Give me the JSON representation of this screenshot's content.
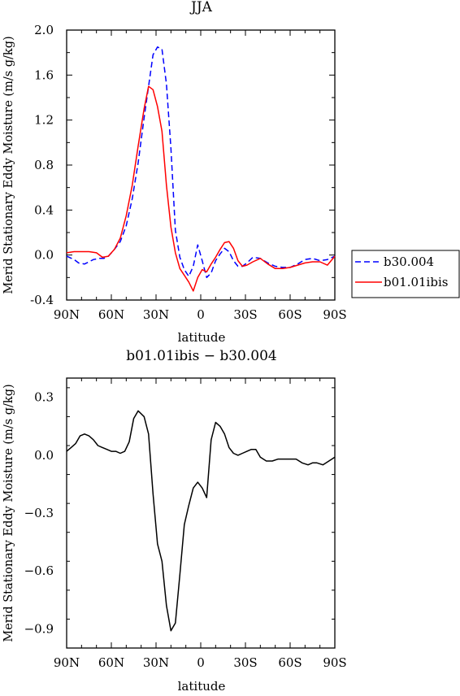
{
  "chart_data": [
    {
      "type": "line",
      "title": "JJA",
      "xlabel": "latitude",
      "ylabel": "Merid Stationary Eddy Moisture (m/s g/kg)",
      "xlim": [
        -90,
        90
      ],
      "ylim": [
        -0.4,
        2.0
      ],
      "x_tick_values": [
        -90,
        -60,
        -30,
        0,
        30,
        60,
        90
      ],
      "x_tick_labels": [
        "90N",
        "60N",
        "30N",
        "0",
        "30S",
        "60S",
        "90S"
      ],
      "y_tick_values": [
        -0.4,
        0.0,
        0.4,
        0.8,
        1.2,
        1.6,
        2.0
      ],
      "y_tick_labels": [
        "-0.4",
        "0.0",
        "0.4",
        "0.8",
        "1.2",
        "1.6",
        "2.0"
      ],
      "legend_position": "right",
      "series": [
        {
          "name": "b30.004",
          "color": "#0000ff",
          "dash": "dashed",
          "x": [
            -90,
            -85,
            -82,
            -78,
            -75,
            -72,
            -68,
            -65,
            -62,
            -58,
            -54,
            -50,
            -46,
            -42,
            -38,
            -35,
            -32,
            -29,
            -26,
            -23,
            -20,
            -17,
            -14,
            -11,
            -8,
            -5,
            -2,
            1,
            4,
            7,
            10,
            13,
            16,
            19,
            22,
            25,
            28,
            31,
            35,
            40,
            45,
            50,
            55,
            60,
            65,
            70,
            75,
            80,
            85,
            90
          ],
          "values": [
            -0.01,
            -0.04,
            -0.07,
            -0.08,
            -0.06,
            -0.04,
            -0.03,
            -0.03,
            -0.01,
            0.05,
            0.12,
            0.26,
            0.5,
            0.82,
            1.22,
            1.5,
            1.78,
            1.85,
            1.83,
            1.52,
            0.95,
            0.22,
            -0.02,
            -0.13,
            -0.19,
            -0.1,
            0.09,
            -0.05,
            -0.2,
            -0.16,
            -0.05,
            0.01,
            0.06,
            0.03,
            -0.05,
            -0.1,
            -0.1,
            -0.07,
            -0.02,
            -0.03,
            -0.07,
            -0.1,
            -0.11,
            -0.11,
            -0.08,
            -0.04,
            -0.03,
            -0.05,
            -0.04,
            -0.01
          ]
        },
        {
          "name": "b01.01ibis",
          "color": "#ff0000",
          "dash": "solid",
          "x": [
            -90,
            -85,
            -80,
            -75,
            -70,
            -66,
            -62,
            -58,
            -54,
            -50,
            -46,
            -42,
            -38,
            -35,
            -32,
            -29,
            -26,
            -23,
            -20,
            -17,
            -14,
            -11,
            -8,
            -5,
            -2,
            1,
            4,
            7,
            10,
            13,
            16,
            19,
            22,
            25,
            28,
            31,
            35,
            40,
            45,
            50,
            55,
            60,
            65,
            70,
            75,
            80,
            85,
            90
          ],
          "values": [
            0.02,
            0.03,
            0.03,
            0.03,
            0.02,
            -0.02,
            -0.01,
            0.05,
            0.15,
            0.35,
            0.62,
            0.97,
            1.3,
            1.5,
            1.47,
            1.32,
            1.1,
            0.62,
            0.25,
            0.02,
            -0.12,
            -0.18,
            -0.24,
            -0.32,
            -0.2,
            -0.13,
            -0.15,
            -0.08,
            -0.02,
            0.05,
            0.11,
            0.12,
            0.06,
            -0.05,
            -0.1,
            -0.09,
            -0.06,
            -0.03,
            -0.08,
            -0.12,
            -0.12,
            -0.11,
            -0.09,
            -0.07,
            -0.06,
            -0.06,
            -0.09,
            -0.01
          ]
        }
      ]
    },
    {
      "type": "line",
      "title": "b01.01ibis − b30.004",
      "xlabel": "latitude",
      "ylabel": "Merid Stationary Eddy Moisture (m/s g/kg)",
      "xlim": [
        -90,
        90
      ],
      "ylim": [
        -1.0,
        0.4
      ],
      "x_tick_values": [
        -90,
        -60,
        -30,
        0,
        30,
        60,
        90
      ],
      "x_tick_labels": [
        "90N",
        "60N",
        "30N",
        "0",
        "30S",
        "60S",
        "90S"
      ],
      "y_tick_values": [
        -0.9,
        -0.6,
        -0.3,
        0.0,
        0.3
      ],
      "y_tick_labels": [
        "−0.9",
        "−0.6",
        "−0.3",
        "0.0",
        "0.3"
      ],
      "series": [
        {
          "name": "",
          "color": "#000000",
          "dash": "solid",
          "x": [
            -90,
            -87,
            -84,
            -81,
            -78,
            -75,
            -72,
            -69,
            -66,
            -63,
            -60,
            -57,
            -54,
            -51,
            -48,
            -45,
            -42,
            -38,
            -35,
            -32,
            -29,
            -26,
            -23,
            -20,
            -17,
            -14,
            -11,
            -8,
            -5,
            -2,
            1,
            4,
            7,
            10,
            13,
            16,
            19,
            22,
            25,
            28,
            31,
            34,
            37,
            40,
            44,
            48,
            52,
            56,
            60,
            64,
            68,
            72,
            75,
            78,
            82,
            86,
            90
          ],
          "values": [
            0.02,
            0.04,
            0.06,
            0.1,
            0.11,
            0.1,
            0.08,
            0.05,
            0.04,
            0.03,
            0.02,
            0.02,
            0.01,
            0.02,
            0.07,
            0.19,
            0.23,
            0.2,
            0.11,
            -0.2,
            -0.46,
            -0.55,
            -0.78,
            -0.91,
            -0.87,
            -0.62,
            -0.36,
            -0.26,
            -0.17,
            -0.14,
            -0.17,
            -0.22,
            0.08,
            0.17,
            0.15,
            0.11,
            0.04,
            0.01,
            0.0,
            0.01,
            0.02,
            0.03,
            0.03,
            -0.01,
            -0.03,
            -0.03,
            -0.02,
            -0.02,
            -0.02,
            -0.02,
            -0.04,
            -0.05,
            -0.04,
            -0.04,
            -0.05,
            -0.03,
            -0.01
          ]
        }
      ]
    }
  ]
}
